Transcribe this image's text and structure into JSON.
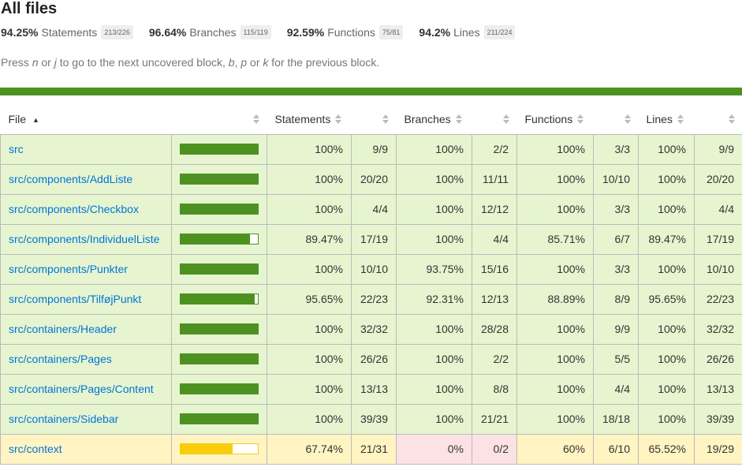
{
  "title": "All files",
  "summary": [
    {
      "pct": "94.25%",
      "label": "Statements",
      "fraction": "213/226"
    },
    {
      "pct": "96.64%",
      "label": "Branches",
      "fraction": "115/119"
    },
    {
      "pct": "92.59%",
      "label": "Functions",
      "fraction": "75/81"
    },
    {
      "pct": "94.2%",
      "label": "Lines",
      "fraction": "211/224"
    }
  ],
  "hint": {
    "p1": "Press ",
    "k1": "n",
    "p2": " or ",
    "k2": "j",
    "p3": " to go to the next uncovered block, ",
    "k3": "b",
    "p4": ", ",
    "k4": "p",
    "p5": " or ",
    "k5": "k",
    "p6": " for the previous block."
  },
  "headers": {
    "file": "File",
    "file_arrow": "▲",
    "statements": "Statements",
    "branches": "Branches",
    "functions": "Functions",
    "lines": "Lines"
  },
  "colors": {
    "high": "#4d9221",
    "medium": "#f9cd0b",
    "link": "#0074D9"
  },
  "rows": [
    {
      "file": "src",
      "level": "high",
      "bar_fraction": 1.0,
      "stmt_pct": "100%",
      "stmt_abs": "9/9",
      "br_pct": "100%",
      "br_abs": "2/2",
      "fn_pct": "100%",
      "fn_abs": "3/3",
      "ln_pct": "100%",
      "ln_abs": "9/9"
    },
    {
      "file": "src/components/AddListe",
      "level": "high",
      "bar_fraction": 1.0,
      "stmt_pct": "100%",
      "stmt_abs": "20/20",
      "br_pct": "100%",
      "br_abs": "11/11",
      "fn_pct": "100%",
      "fn_abs": "10/10",
      "ln_pct": "100%",
      "ln_abs": "20/20"
    },
    {
      "file": "src/components/Checkbox",
      "level": "high",
      "bar_fraction": 1.0,
      "stmt_pct": "100%",
      "stmt_abs": "4/4",
      "br_pct": "100%",
      "br_abs": "12/12",
      "fn_pct": "100%",
      "fn_abs": "3/3",
      "ln_pct": "100%",
      "ln_abs": "4/4"
    },
    {
      "file": "src/components/IndividuelListe",
      "level": "high",
      "bar_fraction": 0.8947,
      "stmt_pct": "89.47%",
      "stmt_abs": "17/19",
      "br_pct": "100%",
      "br_abs": "4/4",
      "fn_pct": "85.71%",
      "fn_abs": "6/7",
      "ln_pct": "89.47%",
      "ln_abs": "17/19"
    },
    {
      "file": "src/components/Punkter",
      "level": "high",
      "bar_fraction": 1.0,
      "stmt_pct": "100%",
      "stmt_abs": "10/10",
      "br_pct": "93.75%",
      "br_abs": "15/16",
      "fn_pct": "100%",
      "fn_abs": "3/3",
      "ln_pct": "100%",
      "ln_abs": "10/10"
    },
    {
      "file": "src/components/TilføjPunkt",
      "level": "high",
      "bar_fraction": 0.9565,
      "stmt_pct": "95.65%",
      "stmt_abs": "22/23",
      "br_pct": "92.31%",
      "br_abs": "12/13",
      "fn_pct": "88.89%",
      "fn_abs": "8/9",
      "ln_pct": "95.65%",
      "ln_abs": "22/23"
    },
    {
      "file": "src/containers/Header",
      "level": "high",
      "bar_fraction": 1.0,
      "stmt_pct": "100%",
      "stmt_abs": "32/32",
      "br_pct": "100%",
      "br_abs": "28/28",
      "fn_pct": "100%",
      "fn_abs": "9/9",
      "ln_pct": "100%",
      "ln_abs": "32/32"
    },
    {
      "file": "src/containers/Pages",
      "level": "high",
      "bar_fraction": 1.0,
      "stmt_pct": "100%",
      "stmt_abs": "26/26",
      "br_pct": "100%",
      "br_abs": "2/2",
      "fn_pct": "100%",
      "fn_abs": "5/5",
      "ln_pct": "100%",
      "ln_abs": "26/26"
    },
    {
      "file": "src/containers/Pages/Content",
      "level": "high",
      "bar_fraction": 1.0,
      "stmt_pct": "100%",
      "stmt_abs": "13/13",
      "br_pct": "100%",
      "br_abs": "8/8",
      "fn_pct": "100%",
      "fn_abs": "4/4",
      "ln_pct": "100%",
      "ln_abs": "13/13"
    },
    {
      "file": "src/containers/Sidebar",
      "level": "high",
      "bar_fraction": 1.0,
      "stmt_pct": "100%",
      "stmt_abs": "39/39",
      "br_pct": "100%",
      "br_abs": "21/21",
      "fn_pct": "100%",
      "fn_abs": "18/18",
      "ln_pct": "100%",
      "ln_abs": "39/39"
    },
    {
      "file": "src/context",
      "level": "medium",
      "bar_fraction": 0.6774,
      "stmt_pct": "67.74%",
      "stmt_abs": "21/31",
      "br_pct": "0%",
      "br_abs": "0/2",
      "br_low": true,
      "fn_pct": "60%",
      "fn_abs": "6/10",
      "ln_pct": "65.52%",
      "ln_abs": "19/29"
    }
  ]
}
